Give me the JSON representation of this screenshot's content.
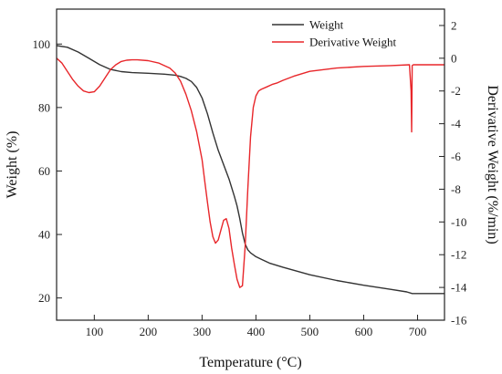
{
  "chart_data": {
    "type": "line",
    "xlabel": "Temperature (°C)",
    "ylabel_left": "Weight (%)",
    "ylabel_right": "Derivative Weight (%/min)",
    "xlim": [
      30,
      750
    ],
    "ylim_left": [
      13,
      111
    ],
    "ylim_right": [
      -16,
      3
    ],
    "xticks": [
      100,
      200,
      300,
      400,
      500,
      600,
      700
    ],
    "yticks_left": [
      20,
      40,
      60,
      80,
      100
    ],
    "yticks_right": [
      2,
      0,
      -2,
      -4,
      -6,
      -8,
      -10,
      -12,
      -14,
      -16
    ],
    "grid": false,
    "legend_position": "top-right",
    "series": [
      {
        "name": "Weight",
        "axis": "left",
        "color": "#333333",
        "x": [
          30,
          50,
          70,
          90,
          110,
          130,
          150,
          170,
          200,
          230,
          250,
          260,
          270,
          280,
          290,
          300,
          310,
          320,
          330,
          340,
          350,
          360,
          365,
          370,
          375,
          380,
          385,
          390,
          395,
          400,
          410,
          425,
          450,
          500,
          550,
          600,
          650,
          680,
          690,
          700,
          750
        ],
        "y": [
          99.5,
          99,
          97.5,
          95.5,
          93.5,
          92,
          91.3,
          91,
          90.8,
          90.5,
          90.2,
          89.8,
          89.2,
          88.2,
          86.3,
          83,
          78,
          72,
          66.5,
          62,
          57.5,
          52,
          49,
          45,
          40.5,
          37,
          35.2,
          34.2,
          33.6,
          33,
          32.2,
          31,
          29.7,
          27.3,
          25.5,
          24,
          22.7,
          21.9,
          21.4,
          21.4,
          21.4
        ]
      },
      {
        "name": "Derivative Weight",
        "axis": "right",
        "color": "#e8262a",
        "x": [
          30,
          40,
          50,
          60,
          70,
          80,
          90,
          100,
          110,
          120,
          130,
          140,
          150,
          160,
          170,
          180,
          200,
          220,
          240,
          250,
          260,
          270,
          280,
          290,
          300,
          305,
          310,
          315,
          320,
          325,
          330,
          335,
          340,
          345,
          350,
          355,
          360,
          365,
          370,
          375,
          380,
          385,
          390,
          395,
          400,
          405,
          410,
          420,
          430,
          440,
          450,
          470,
          500,
          550,
          600,
          650,
          685,
          688,
          689,
          690,
          692,
          695,
          700,
          750
        ],
        "y": [
          0,
          -0.3,
          -0.8,
          -1.3,
          -1.7,
          -2,
          -2.1,
          -2.05,
          -1.7,
          -1.2,
          -0.7,
          -0.4,
          -0.2,
          -0.12,
          -0.1,
          -0.1,
          -0.15,
          -0.3,
          -0.6,
          -0.9,
          -1.4,
          -2.2,
          -3.2,
          -4.5,
          -6.2,
          -7.5,
          -8.8,
          -10,
          -10.9,
          -11.3,
          -11.1,
          -10.5,
          -9.9,
          -9.8,
          -10.4,
          -11.6,
          -12.6,
          -13.5,
          -14,
          -13.9,
          -11.5,
          -8,
          -4.8,
          -3,
          -2.3,
          -2,
          -1.9,
          -1.75,
          -1.6,
          -1.5,
          -1.35,
          -1.1,
          -0.8,
          -0.6,
          -0.5,
          -0.45,
          -0.4,
          -2,
          -4.5,
          -0.45,
          -0.4,
          -0.4,
          -0.4,
          -0.4
        ]
      }
    ]
  }
}
